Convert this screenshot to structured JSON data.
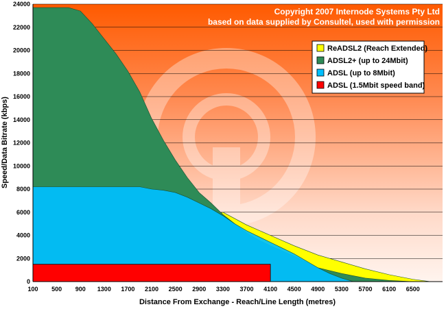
{
  "copyright": {
    "line1": "Copyright 2007 Internode Systems Pty Ltd",
    "line2": "based on data supplied by Consultel, used with permission"
  },
  "chart_data": {
    "type": "area",
    "xlabel": "Distance From Exchange - Reach/Line Length (metres)",
    "ylabel": "Speed/Data Bitrate (kbps)",
    "xlim": [
      100,
      7000
    ],
    "ylim": [
      0,
      24000
    ],
    "xticks": [
      100,
      500,
      900,
      1300,
      1700,
      2100,
      2500,
      2900,
      3300,
      3700,
      4100,
      4500,
      4900,
      5300,
      5700,
      6100,
      6500
    ],
    "yticks": [
      0,
      2000,
      4000,
      6000,
      8000,
      10000,
      12000,
      14000,
      16000,
      18000,
      20000,
      22000,
      24000
    ],
    "grid": true,
    "legend_position": "top-right",
    "series": [
      {
        "name": "ReADSL2 (Reach Extended)",
        "color": "#ffff00",
        "x": [
          100,
          3300,
          3700,
          4100,
          4500,
          4900,
          5300,
          5700,
          6100,
          6500,
          6800
        ],
        "y": [
          0,
          6000,
          4900,
          4000,
          3100,
          2300,
          1700,
          1100,
          600,
          200,
          0
        ]
      },
      {
        "name": "ADSL2+ (up to 24Mbit)",
        "color": "#2e8b57",
        "x": [
          100,
          300,
          500,
          700,
          900,
          1100,
          1300,
          1500,
          1700,
          1900,
          2100,
          2300,
          2500,
          2700,
          2900,
          3100,
          3300,
          3500,
          3700,
          3900,
          4100,
          4500,
          4900,
          5300,
          5700,
          6100,
          6500
        ],
        "y": [
          23700,
          23700,
          23700,
          23700,
          23400,
          22300,
          21000,
          19700,
          18200,
          16400,
          14100,
          12200,
          10500,
          9000,
          7700,
          6800,
          5800,
          5000,
          4200,
          3600,
          3100,
          2200,
          1200,
          700,
          300,
          100,
          0
        ]
      },
      {
        "name": "ADSL (up to 8Mbit)",
        "color": "#00bfff",
        "x": [
          100,
          500,
          900,
          1300,
          1700,
          1900,
          2100,
          2300,
          2500,
          2700,
          2900,
          3100,
          3300,
          3500,
          3700,
          3900,
          4100,
          4300,
          4500,
          4700,
          4900,
          5100,
          5300,
          5500
        ],
        "y": [
          8200,
          8200,
          8200,
          8200,
          8200,
          8200,
          8000,
          7900,
          7700,
          7300,
          6800,
          6300,
          5700,
          5000,
          4400,
          3900,
          3400,
          2900,
          2400,
          1800,
          1200,
          700,
          300,
          0
        ]
      },
      {
        "name": "ADSL (1.5Mbit speed band)",
        "color": "#ff0000",
        "x": [
          100,
          4100
        ],
        "y": [
          1500,
          1500
        ]
      }
    ]
  }
}
